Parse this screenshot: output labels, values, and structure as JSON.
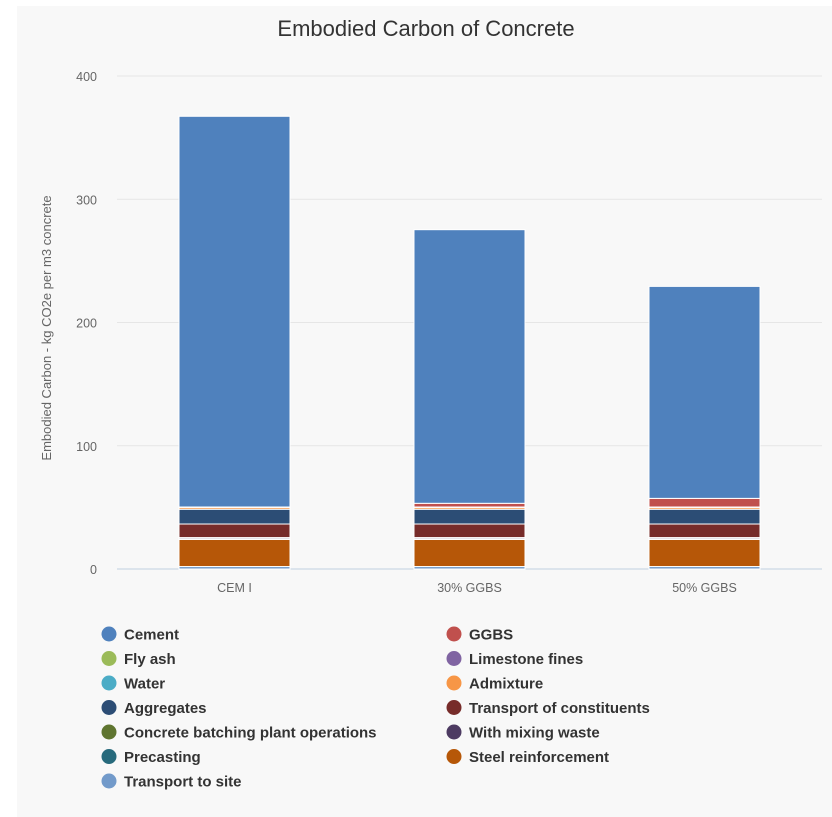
{
  "chart_data": {
    "type": "bar",
    "stacked": true,
    "title": "Embodied Carbon of Concrete",
    "ylabel": "Embodied Carbon - kg CO2e per m3 concrete",
    "xlabel": "",
    "ylim": [
      0,
      400
    ],
    "yticks": [
      "0",
      "100",
      "200",
      "300",
      "400"
    ],
    "grid": true,
    "legend_position": "bottom",
    "categories": [
      "CEM I",
      "30% GGBS",
      "50% GGBS"
    ],
    "series": [
      {
        "name": "Cement",
        "color": "#4f81bd",
        "values": [
          317,
          222,
          172
        ]
      },
      {
        "name": "GGBS",
        "color": "#c0504d",
        "values": [
          0,
          3,
          7
        ]
      },
      {
        "name": "Fly ash",
        "color": "#9bbb59",
        "values": [
          0,
          0,
          0
        ]
      },
      {
        "name": "Limestone fines",
        "color": "#8064a2",
        "values": [
          0,
          0,
          0
        ]
      },
      {
        "name": "Water",
        "color": "#4bacc6",
        "values": [
          0.3,
          0.3,
          0.3
        ]
      },
      {
        "name": "Admixture",
        "color": "#f79646",
        "values": [
          1.5,
          1.5,
          1.5
        ]
      },
      {
        "name": "Aggregates",
        "color": "#2c4d75",
        "values": [
          12,
          12,
          12
        ]
      },
      {
        "name": "Transport of constituents",
        "color": "#772c2a",
        "values": [
          11,
          11,
          11
        ]
      },
      {
        "name": "Concrete batching plant operations",
        "color": "#5f7530",
        "values": [
          0.5,
          0.5,
          0.5
        ]
      },
      {
        "name": "With mixing waste",
        "color": "#4d3b62",
        "values": [
          1,
          1,
          1
        ]
      },
      {
        "name": "Precasting",
        "color": "#276a7c",
        "values": [
          0,
          0,
          0
        ]
      },
      {
        "name": "Steel reinforcement",
        "color": "#b65708",
        "values": [
          22,
          22,
          22
        ]
      },
      {
        "name": "Transport to site",
        "color": "#729aca",
        "values": [
          2,
          2,
          2
        ]
      }
    ]
  }
}
